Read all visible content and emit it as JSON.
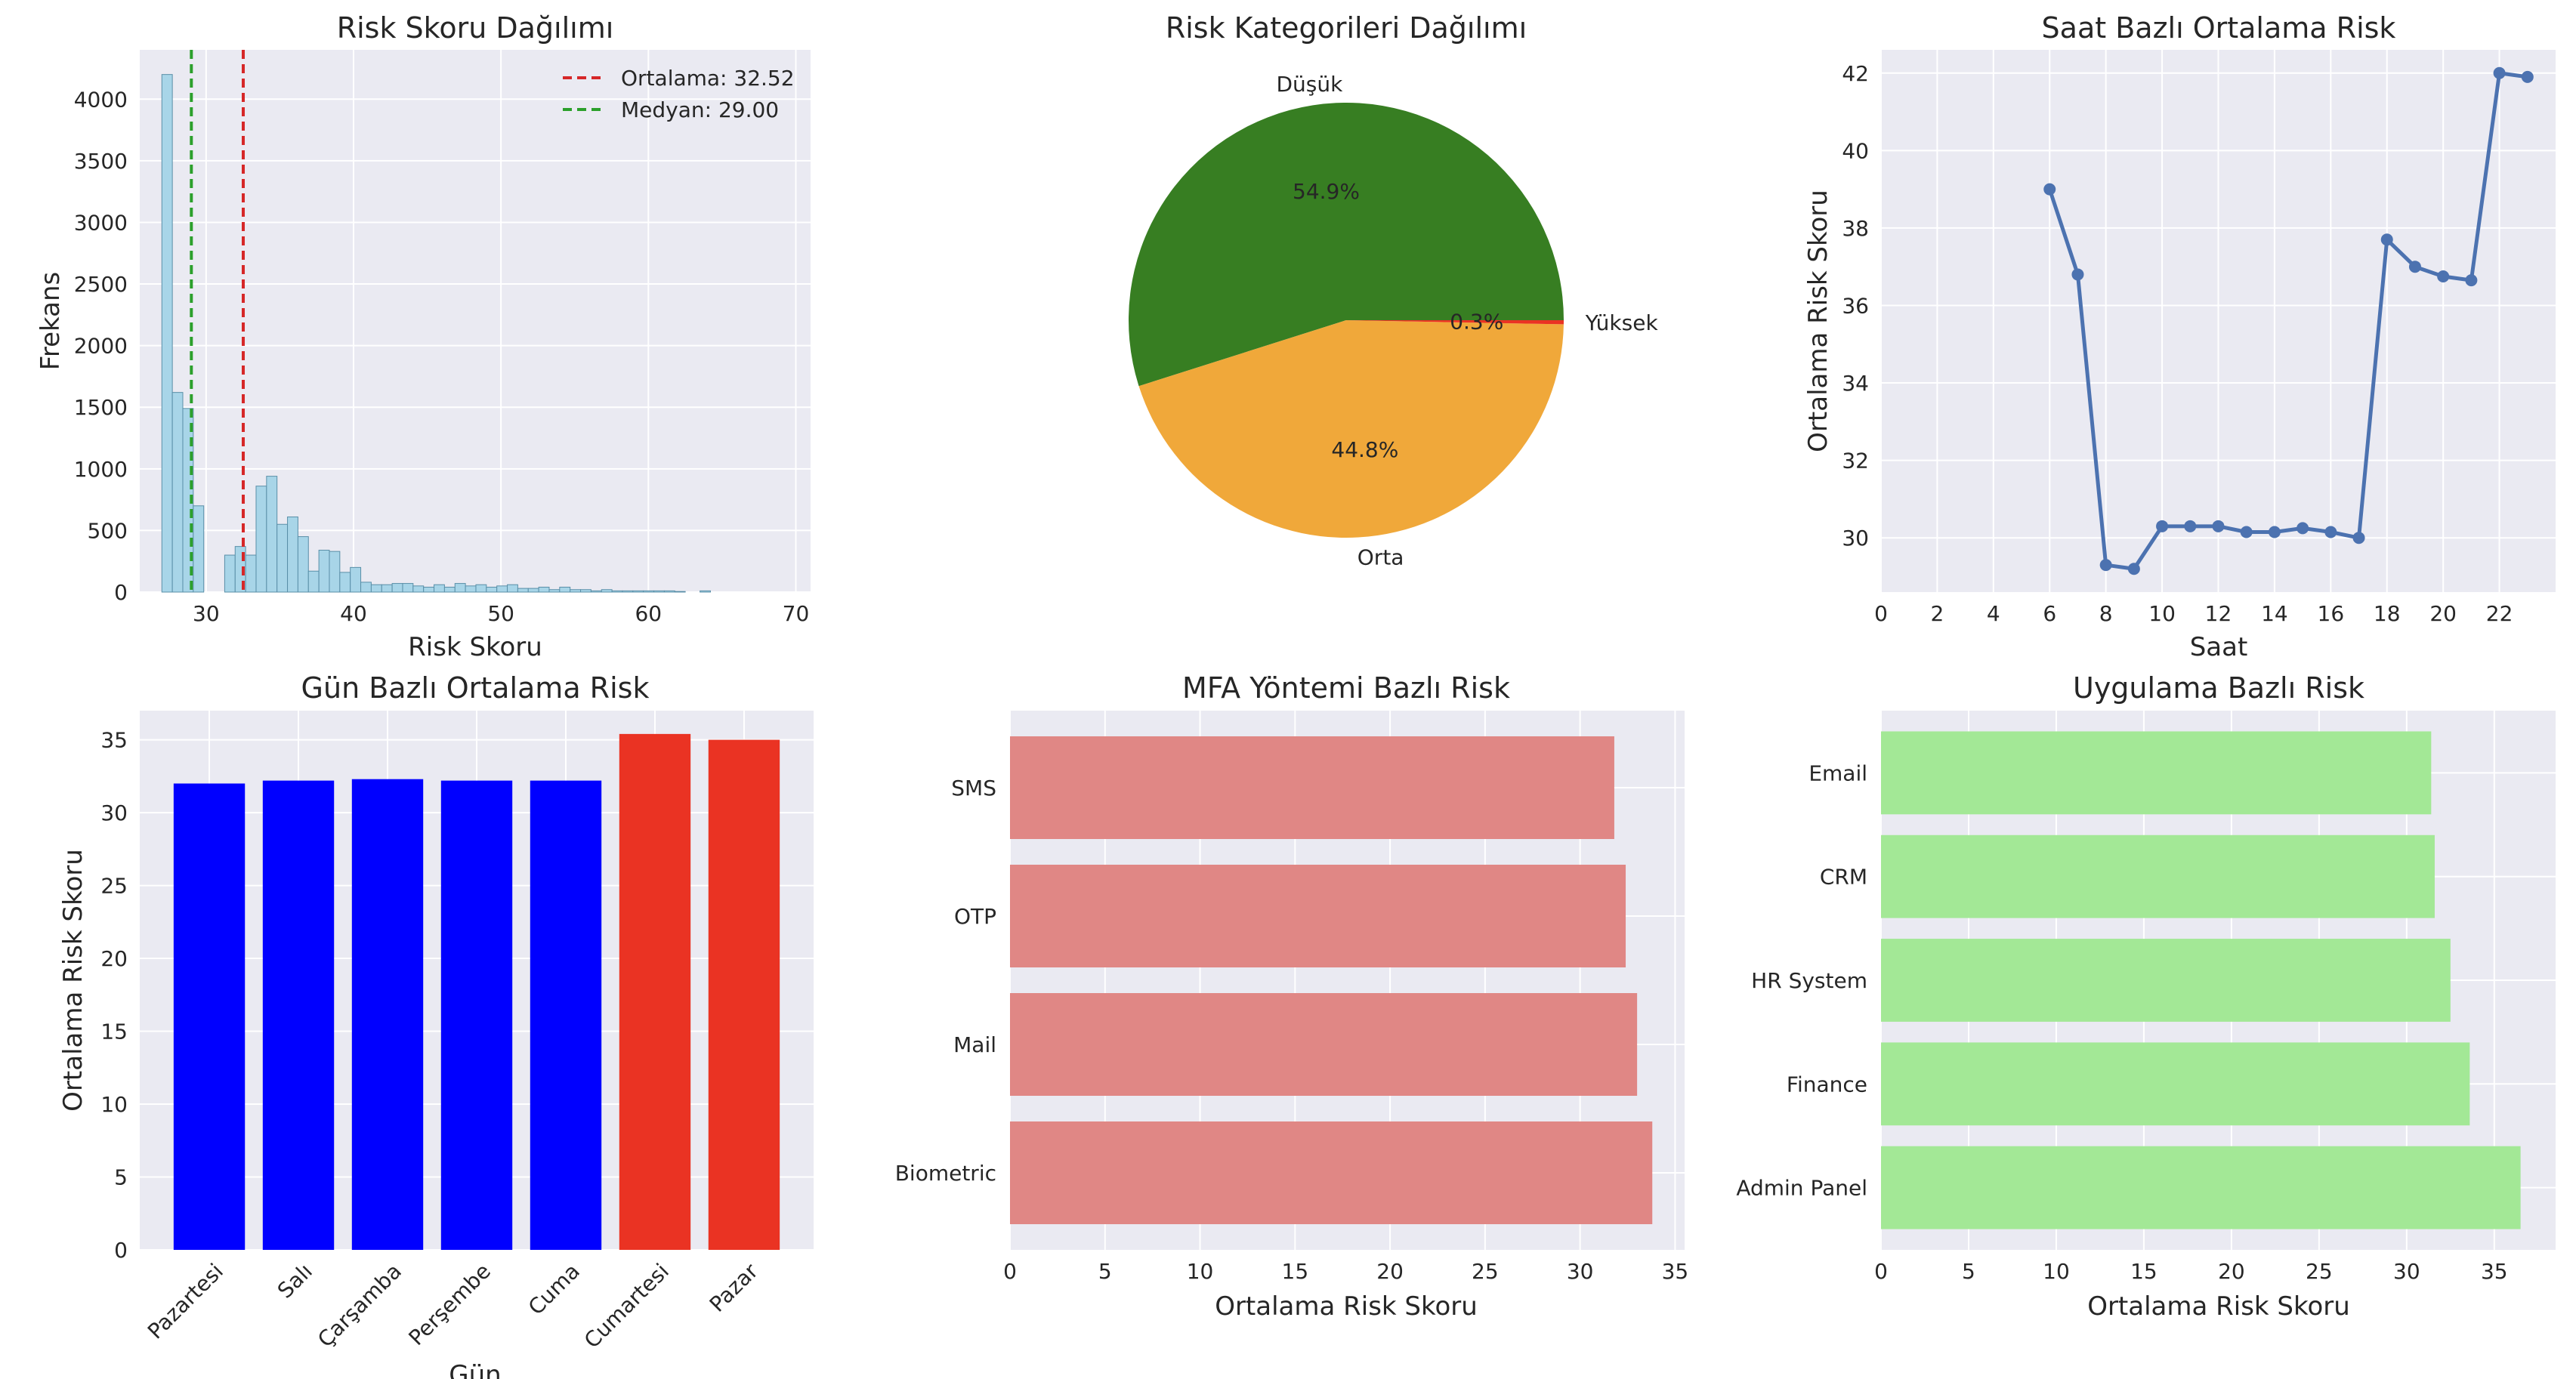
{
  "chart_data": [
    {
      "id": "histogram",
      "type": "bar",
      "title": "Risk Skoru Dağılımı",
      "xlabel": "Risk Skoru",
      "ylabel": "Frekans",
      "xlim": [
        25.5,
        71
      ],
      "ylim": [
        0,
        4400
      ],
      "xticks": [
        30,
        40,
        50,
        60,
        70
      ],
      "yticks": [
        0,
        500,
        1000,
        1500,
        2000,
        2500,
        3000,
        3500,
        4000
      ],
      "bin_width": 0.71,
      "bins": [
        {
          "x": 27.0,
          "count": 4200
        },
        {
          "x": 27.71,
          "count": 1620
        },
        {
          "x": 28.42,
          "count": 1490
        },
        {
          "x": 29.13,
          "count": 700
        },
        {
          "x": 29.84,
          "count": 0
        },
        {
          "x": 30.55,
          "count": 0
        },
        {
          "x": 31.26,
          "count": 300
        },
        {
          "x": 31.97,
          "count": 370
        },
        {
          "x": 32.68,
          "count": 300
        },
        {
          "x": 33.39,
          "count": 860
        },
        {
          "x": 34.1,
          "count": 940
        },
        {
          "x": 34.81,
          "count": 550
        },
        {
          "x": 35.52,
          "count": 610
        },
        {
          "x": 36.23,
          "count": 450
        },
        {
          "x": 36.94,
          "count": 170
        },
        {
          "x": 37.65,
          "count": 340
        },
        {
          "x": 38.36,
          "count": 330
        },
        {
          "x": 39.07,
          "count": 160
        },
        {
          "x": 39.78,
          "count": 200
        },
        {
          "x": 40.49,
          "count": 80
        },
        {
          "x": 41.2,
          "count": 60
        },
        {
          "x": 41.91,
          "count": 60
        },
        {
          "x": 42.62,
          "count": 70
        },
        {
          "x": 43.33,
          "count": 70
        },
        {
          "x": 44.04,
          "count": 50
        },
        {
          "x": 44.75,
          "count": 40
        },
        {
          "x": 45.46,
          "count": 60
        },
        {
          "x": 46.17,
          "count": 40
        },
        {
          "x": 46.88,
          "count": 70
        },
        {
          "x": 47.59,
          "count": 50
        },
        {
          "x": 48.3,
          "count": 60
        },
        {
          "x": 49.01,
          "count": 40
        },
        {
          "x": 49.72,
          "count": 50
        },
        {
          "x": 50.43,
          "count": 60
        },
        {
          "x": 51.14,
          "count": 30
        },
        {
          "x": 51.85,
          "count": 30
        },
        {
          "x": 52.56,
          "count": 40
        },
        {
          "x": 53.27,
          "count": 20
        },
        {
          "x": 53.98,
          "count": 40
        },
        {
          "x": 54.69,
          "count": 20
        },
        {
          "x": 55.4,
          "count": 20
        },
        {
          "x": 56.11,
          "count": 10
        },
        {
          "x": 56.82,
          "count": 20
        },
        {
          "x": 57.53,
          "count": 10
        },
        {
          "x": 58.24,
          "count": 10
        },
        {
          "x": 58.95,
          "count": 10
        },
        {
          "x": 59.66,
          "count": 10
        },
        {
          "x": 60.37,
          "count": 10
        },
        {
          "x": 61.08,
          "count": 10
        },
        {
          "x": 61.79,
          "count": 5
        },
        {
          "x": 63.5,
          "count": 10
        }
      ],
      "vlines": [
        {
          "label": "Ortalama: 32.52",
          "x": 32.52,
          "color": "#d62728"
        },
        {
          "label": "Medyan: 29.00",
          "x": 29.0,
          "color": "#2ca02c"
        }
      ],
      "legend_position": "top-right",
      "bar_color": "#a8d5e8",
      "grid": true
    },
    {
      "id": "pie",
      "type": "pie",
      "title": "Risk Kategorileri Dağılımı",
      "slices": [
        {
          "label": "Düşük",
          "value": 54.9,
          "pct_label": "54.9%",
          "color": "#377e22"
        },
        {
          "label": "Orta",
          "value": 44.8,
          "pct_label": "44.8%",
          "color": "#f0a83a"
        },
        {
          "label": "Yüksek",
          "value": 0.3,
          "pct_label": "0.3%",
          "color": "#ea3323"
        }
      ]
    },
    {
      "id": "hourly",
      "type": "line",
      "title": "Saat Bazlı Ortalama Risk",
      "xlabel": "Saat",
      "ylabel": "Ortalama Risk Skoru",
      "xlim": [
        0,
        24
      ],
      "ylim": [
        28.6,
        42.6
      ],
      "xticks": [
        0,
        2,
        4,
        6,
        8,
        10,
        12,
        14,
        16,
        18,
        20,
        22
      ],
      "yticks": [
        30,
        32,
        34,
        36,
        38,
        40,
        42
      ],
      "x": [
        6,
        7,
        8,
        9,
        10,
        11,
        12,
        13,
        14,
        15,
        16,
        17,
        18,
        19,
        20,
        21,
        22,
        23
      ],
      "y": [
        39.0,
        36.8,
        29.3,
        29.2,
        30.3,
        30.3,
        30.3,
        30.15,
        30.15,
        30.25,
        30.15,
        30.0,
        37.7,
        37.0,
        36.75,
        36.65,
        42.0,
        41.9
      ],
      "color": "#4c72b0",
      "grid": true
    },
    {
      "id": "daily",
      "type": "bar",
      "title": "Gün Bazlı Ortalama Risk",
      "xlabel": "Gün",
      "ylabel": "Ortalama Risk Skoru",
      "ylim": [
        0,
        37
      ],
      "yticks": [
        0,
        5,
        10,
        15,
        20,
        25,
        30,
        35
      ],
      "categories": [
        "Pazartesi",
        "Salı",
        "Çarşamba",
        "Perşembe",
        "Cuma",
        "Cumartesi",
        "Pazar"
      ],
      "values": [
        32.0,
        32.2,
        32.3,
        32.2,
        32.2,
        35.4,
        35.0
      ],
      "colors": [
        "#0000ff",
        "#0000ff",
        "#0000ff",
        "#0000ff",
        "#0000ff",
        "#ea3323",
        "#ea3323"
      ],
      "grid": true
    },
    {
      "id": "mfa",
      "type": "bar",
      "orientation": "horizontal",
      "title": "MFA Yöntemi Bazlı Risk",
      "xlabel": "Ortalama Risk Skoru",
      "xlim": [
        0,
        35.5
      ],
      "xticks": [
        0,
        5,
        10,
        15,
        20,
        25,
        30,
        35
      ],
      "categories": [
        "SMS",
        "OTP",
        "Mail",
        "Biometric"
      ],
      "values": [
        31.8,
        32.4,
        33.0,
        33.8
      ],
      "color": "#e08785",
      "grid": true
    },
    {
      "id": "app",
      "type": "bar",
      "orientation": "horizontal",
      "title": "Uygulama Bazlı Risk",
      "xlabel": "Ortalama Risk Skoru",
      "xlim": [
        0,
        38.5
      ],
      "xticks": [
        0,
        5,
        10,
        15,
        20,
        25,
        30,
        35
      ],
      "categories": [
        "Email",
        "CRM",
        "HR System",
        "Finance",
        "Admin Panel"
      ],
      "values": [
        31.4,
        31.6,
        32.5,
        33.6,
        36.5
      ],
      "color": "#a3e896",
      "grid": true
    }
  ]
}
